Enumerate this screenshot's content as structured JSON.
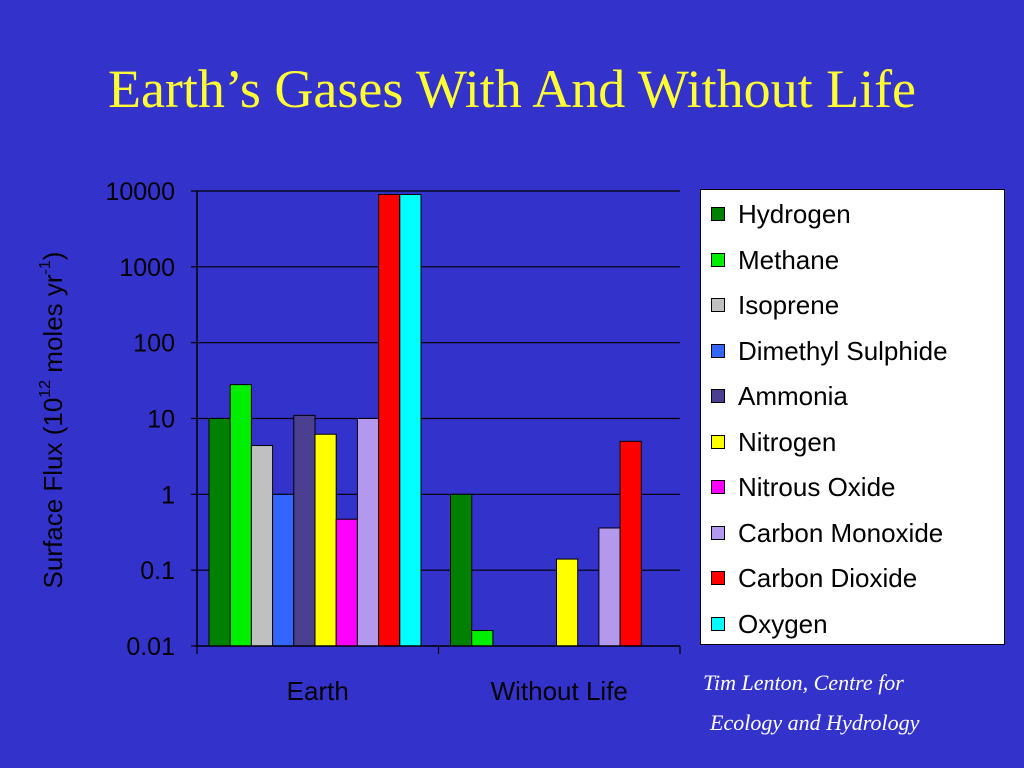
{
  "slide": {
    "title": "Earth’s  Gases With And Without Life",
    "credit_line1": "Tim Lenton, Centre for",
    "credit_line2": "Ecology and Hydrology"
  },
  "chart_data": {
    "type": "bar",
    "title": "",
    "ylabel": "Surface Flux (10^12 moles yr^-1)",
    "yscale": "log",
    "ylim": [
      0.01,
      10000
    ],
    "yticks": [
      "10000",
      "1000",
      "100",
      "10",
      "1",
      "0.1",
      "0.01"
    ],
    "categories": [
      "Earth",
      "Without Life"
    ],
    "grid": true,
    "legend_position": "right",
    "series": [
      {
        "name": "Hydrogen",
        "color": "#008000",
        "values": [
          10,
          1
        ]
      },
      {
        "name": "Methane",
        "color": "#00ee00",
        "values": [
          28,
          0.016
        ]
      },
      {
        "name": "Isoprene",
        "color": "#c0c0c0",
        "values": [
          4.4,
          null
        ]
      },
      {
        "name": "Dimethyl Sulphide",
        "color": "#3366ff",
        "values": [
          1,
          null
        ]
      },
      {
        "name": "Ammonia",
        "color": "#4b3f8f",
        "values": [
          11,
          null
        ]
      },
      {
        "name": "Nitrogen",
        "color": "#ffff00",
        "values": [
          6.2,
          0.14
        ]
      },
      {
        "name": "Nitrous Oxide",
        "color": "#ff00ff",
        "values": [
          0.47,
          null
        ]
      },
      {
        "name": "Carbon Monoxide",
        "color": "#b399ee",
        "values": [
          10,
          0.36
        ]
      },
      {
        "name": "Carbon Dioxide",
        "color": "#ff0000",
        "values": [
          9000,
          5
        ]
      },
      {
        "name": "Oxygen",
        "color": "#00ffff",
        "values": [
          9000,
          null
        ]
      }
    ]
  }
}
